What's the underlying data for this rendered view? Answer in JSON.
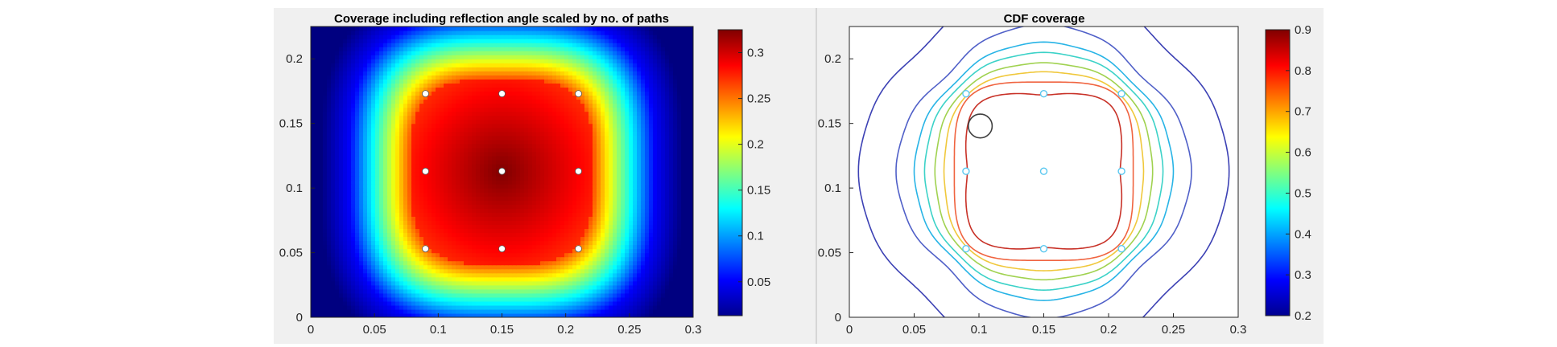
{
  "chart_data": [
    {
      "type": "heatmap",
      "title": "Coverage including reflection angle scaled by no. of paths",
      "xlim": [
        0,
        0.3
      ],
      "ylim": [
        0,
        0.225
      ],
      "x_ticks": [
        "0",
        "0.05",
        "0.1",
        "0.15",
        "0.2",
        "0.25",
        "0.3"
      ],
      "y_ticks": [
        "0",
        "0.05",
        "0.1",
        "0.15",
        "0.2"
      ],
      "colorbar": {
        "colormap": "jet",
        "range": [
          0.013,
          0.325
        ],
        "ticks": [
          "0.05",
          "0.1",
          "0.15",
          "0.2",
          "0.25",
          "0.3"
        ]
      },
      "field": {
        "center": [
          0.15,
          0.113
        ],
        "peak": 0.325,
        "background": 0.013,
        "shape": "rounded-square",
        "half_width": 0.072,
        "falloff": 0.12
      },
      "markers": {
        "color": "#ffffff",
        "points": [
          [
            0.09,
            0.173
          ],
          [
            0.15,
            0.173
          ],
          [
            0.21,
            0.173
          ],
          [
            0.09,
            0.113
          ],
          [
            0.15,
            0.113
          ],
          [
            0.21,
            0.113
          ],
          [
            0.09,
            0.053
          ],
          [
            0.15,
            0.053
          ],
          [
            0.21,
            0.053
          ]
        ]
      }
    },
    {
      "type": "contour",
      "title": "CDF coverage",
      "xlim": [
        0,
        0.3
      ],
      "ylim": [
        0,
        0.225
      ],
      "x_ticks": [
        "0",
        "0.05",
        "0.1",
        "0.15",
        "0.2",
        "0.25",
        "0.3"
      ],
      "y_ticks": [
        "0",
        "0.05",
        "0.1",
        "0.15",
        "0.2"
      ],
      "colorbar": {
        "colormap": "jet",
        "range": [
          0.2,
          0.9
        ],
        "ticks": [
          "0.2",
          "0.3",
          "0.4",
          "0.5",
          "0.6",
          "0.7",
          "0.8",
          "0.9"
        ]
      },
      "center": [
        0.15,
        0.113
      ],
      "contour_levels": [
        {
          "level": 0.2,
          "color": "#3c41b4",
          "radius": 0.137,
          "exponent": 2.4,
          "bulge": 0.012
        },
        {
          "level": 0.3,
          "color": "#5060c8",
          "radius": 0.108,
          "exponent": 2.6,
          "bulge": 0.012
        },
        {
          "level": 0.4,
          "color": "#28b4e6",
          "radius": 0.095,
          "exponent": 3.0,
          "bulge": 0.01
        },
        {
          "level": 0.5,
          "color": "#3cd2c8",
          "radius": 0.088,
          "exponent": 3.2,
          "bulge": 0.008
        },
        {
          "level": 0.6,
          "color": "#a0d250",
          "radius": 0.081,
          "exponent": 3.4,
          "bulge": 0.006
        },
        {
          "level": 0.7,
          "color": "#f0c83c",
          "radius": 0.075,
          "exponent": 3.6,
          "bulge": 0.004
        },
        {
          "level": 0.8,
          "color": "#f06440",
          "radius": 0.069,
          "exponent": 3.8,
          "bulge": 0.0
        },
        {
          "level": 0.9,
          "color": "#c83228",
          "radius": 0.061,
          "exponent": 3.0,
          "bulge": -0.004
        }
      ],
      "markers": {
        "color": "#5ac8f0",
        "points": [
          [
            0.09,
            0.173
          ],
          [
            0.15,
            0.173
          ],
          [
            0.21,
            0.173
          ],
          [
            0.09,
            0.113
          ],
          [
            0.15,
            0.113
          ],
          [
            0.21,
            0.113
          ],
          [
            0.09,
            0.053
          ],
          [
            0.15,
            0.053
          ],
          [
            0.21,
            0.053
          ]
        ]
      },
      "annotation": {
        "shape": "circle",
        "center": [
          0.101,
          0.148
        ],
        "radius": 0.0092,
        "color": "#404040"
      }
    }
  ]
}
